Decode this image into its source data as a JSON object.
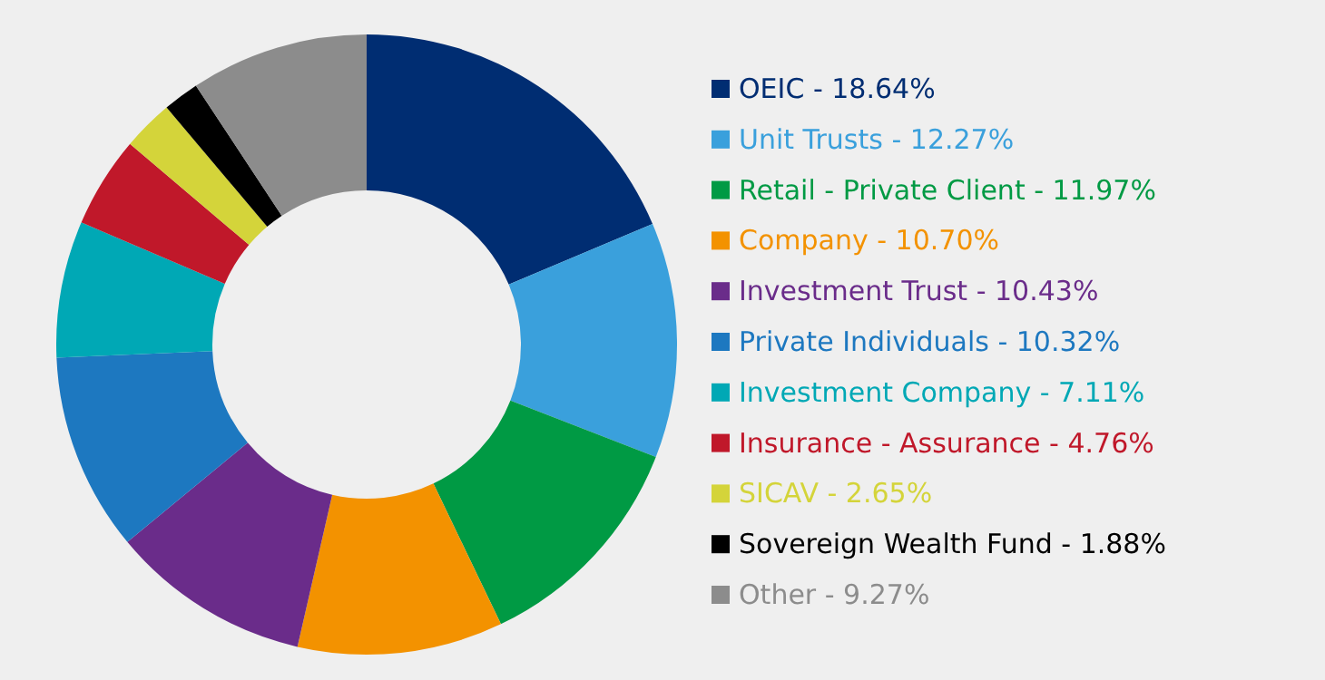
{
  "chart_data": {
    "type": "donut",
    "categories": [
      "OEIC",
      "Unit Trusts",
      "Retail - Private Client",
      "Company",
      "Investment Trust",
      "Private Individuals",
      "Investment Company",
      "Insurance - Assurance",
      "SICAV",
      "Sovereign Wealth Fund",
      "Other"
    ],
    "values": [
      18.64,
      12.27,
      11.97,
      10.7,
      10.43,
      10.32,
      7.11,
      4.76,
      2.65,
      1.88,
      9.27
    ],
    "value_labels": [
      "18.64%",
      "12.27%",
      "11.97%",
      "10.70%",
      "10.43%",
      "10.32%",
      "7.11%",
      "4.76%",
      "2.65%",
      "1.88%",
      "9.27%"
    ],
    "colors": [
      "#002d72",
      "#3aa0dc",
      "#009a44",
      "#f39200",
      "#6a2c8a",
      "#1d78c0",
      "#00a8b5",
      "#c0182a",
      "#d4d43a",
      "#000000",
      "#8c8c8c"
    ],
    "legend": "right"
  }
}
